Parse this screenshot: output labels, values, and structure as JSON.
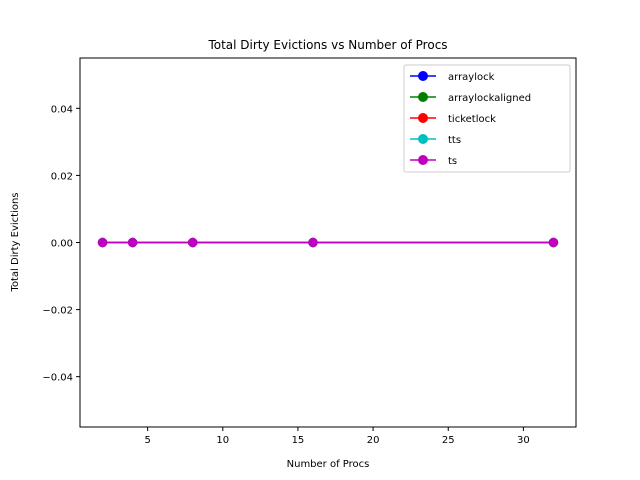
{
  "chart_data": {
    "type": "line",
    "title": "Total Dirty Evictions vs Number of Procs",
    "xlabel": "Number of Procs",
    "ylabel": "Total Dirty Evictions",
    "x": [
      2,
      4,
      8,
      16,
      32
    ],
    "xlim": [
      0.5,
      33.5
    ],
    "ylim": [
      -0.055,
      0.055
    ],
    "xticks": [
      5,
      10,
      15,
      20,
      25,
      30
    ],
    "xtick_labels": [
      "5",
      "10",
      "15",
      "20",
      "25",
      "30"
    ],
    "yticks": [
      -0.04,
      -0.02,
      0.0,
      0.02,
      0.04
    ],
    "ytick_labels": [
      "−0.04",
      "−0.02",
      "0.00",
      "0.02",
      "0.04"
    ],
    "grid": false,
    "legend_position": "top-right",
    "series": [
      {
        "name": "arraylock",
        "color": "#0000ff",
        "values": [
          0,
          0,
          0,
          0,
          0
        ]
      },
      {
        "name": "arraylockaligned",
        "color": "#008000",
        "values": [
          0,
          0,
          0,
          0,
          0
        ]
      },
      {
        "name": "ticketlock",
        "color": "#ff0000",
        "values": [
          0,
          0,
          0,
          0,
          0
        ]
      },
      {
        "name": "tts",
        "color": "#00bfbf",
        "values": [
          0,
          0,
          0,
          0,
          0
        ]
      },
      {
        "name": "ts",
        "color": "#bf00bf",
        "values": [
          0,
          0,
          0,
          0,
          0
        ]
      }
    ]
  }
}
